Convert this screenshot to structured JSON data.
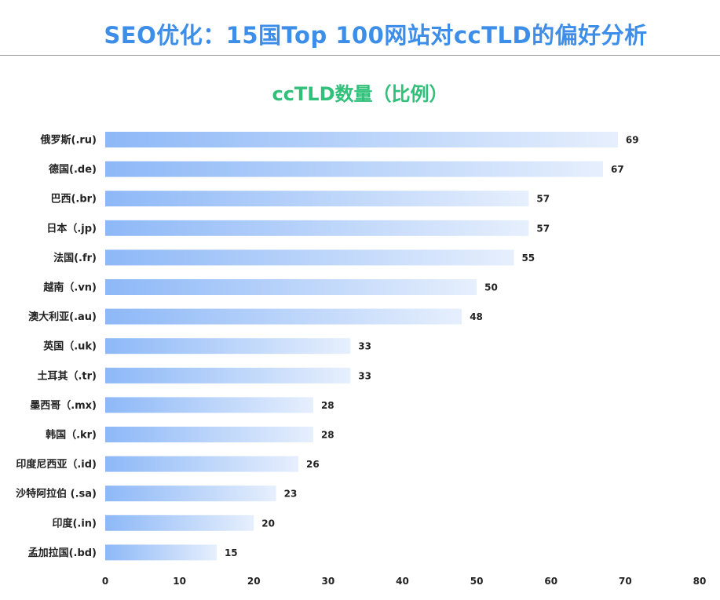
{
  "header": {
    "title": "SEO优化：15国Top 100网站对ccTLD的偏好分析"
  },
  "chart_data": {
    "type": "bar",
    "orientation": "horizontal",
    "title": "ccTLD数量（比例）",
    "xlabel": "",
    "ylabel": "",
    "xlim": [
      0,
      80
    ],
    "xticks": [
      0,
      10,
      20,
      30,
      40,
      50,
      60,
      70,
      80
    ],
    "grid": false,
    "legend": "none",
    "categories": [
      "俄罗斯(.ru)",
      "德国(.de)",
      "巴西(.br)",
      "日本（.jp)",
      "法国(.fr)",
      "越南（.vn)",
      "澳大利亚(.au)",
      "英国（.uk)",
      "土耳其（.tr)",
      "墨西哥（.mx)",
      "韩国（.kr)",
      "印度尼西亚（.id)",
      "沙特阿拉伯 (.sa)",
      "印度(.in)",
      "孟加拉国(.bd)"
    ],
    "values": [
      69,
      67,
      57,
      57,
      55,
      50,
      48,
      33,
      33,
      28,
      28,
      26,
      23,
      20,
      15
    ],
    "colors": {
      "bar_start": "#8db8f7",
      "bar_end": "#e6effd",
      "title": "#3d8ee8",
      "chart_title": "#2fc17a"
    }
  }
}
